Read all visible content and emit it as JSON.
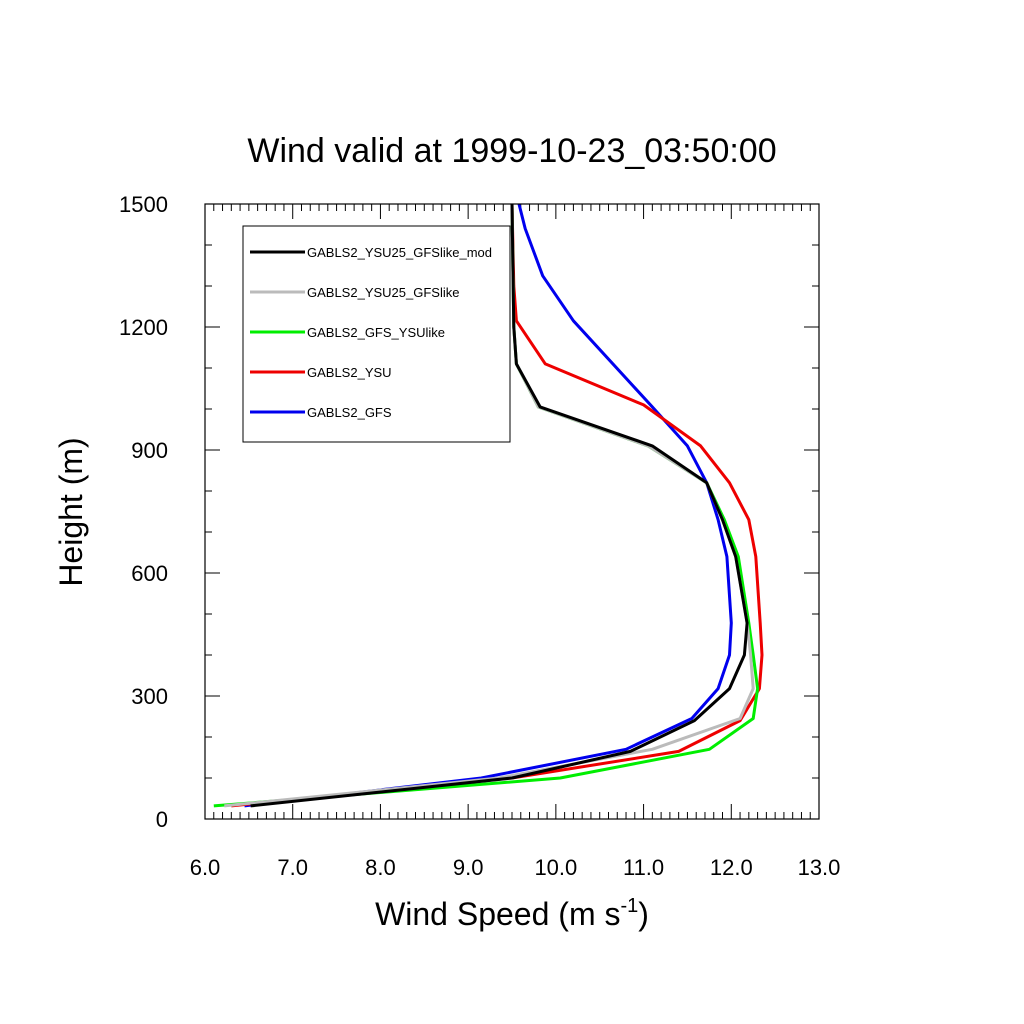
{
  "chart_data": {
    "type": "line",
    "title": "Wind valid at 1999-10-23_03:50:00",
    "xlabel": "Wind Speed (m s",
    "xlabel_sup": "-1",
    "xlabel_tail": ")",
    "ylabel": "Height (m)",
    "xlim": [
      6.0,
      13.0
    ],
    "ylim": [
      0,
      1500
    ],
    "x_ticks": [
      "6.0",
      "7.0",
      "8.0",
      "9.0",
      "10.0",
      "11.0",
      "12.0",
      "13.0"
    ],
    "y_ticks": [
      "0",
      "300",
      "600",
      "900",
      "1200",
      "1500"
    ],
    "grid": false,
    "legend_position": "top-left",
    "series": [
      {
        "name": "GABLS2_YSU25_GFSlike_mod",
        "color": "#000000",
        "points": [
          [
            6.52,
            32
          ],
          [
            9.5,
            100
          ],
          [
            10.85,
            165
          ],
          [
            11.58,
            240
          ],
          [
            11.98,
            318
          ],
          [
            12.15,
            400
          ],
          [
            12.18,
            478
          ],
          [
            12.05,
            640
          ],
          [
            11.9,
            730
          ],
          [
            11.72,
            820
          ],
          [
            11.1,
            910
          ],
          [
            9.82,
            1005
          ],
          [
            9.55,
            1110
          ],
          [
            9.52,
            1200
          ],
          [
            9.5,
            1500
          ]
        ]
      },
      {
        "name": "GABLS2_YSU25_GFSlike",
        "color": "#bbbbbb",
        "points": [
          [
            6.22,
            32
          ],
          [
            9.35,
            100
          ],
          [
            11.1,
            170
          ],
          [
            12.1,
            245
          ],
          [
            12.25,
            318
          ],
          [
            12.22,
            400
          ],
          [
            12.18,
            478
          ],
          [
            12.05,
            640
          ],
          [
            11.9,
            730
          ],
          [
            11.72,
            820
          ],
          [
            11.05,
            910
          ],
          [
            9.8,
            1005
          ],
          [
            9.55,
            1110
          ],
          [
            9.52,
            1200
          ],
          [
            9.5,
            1500
          ]
        ]
      },
      {
        "name": "GABLS2_GFS_YSUlike",
        "color": "#00ee00",
        "points": [
          [
            6.1,
            32
          ],
          [
            10.05,
            100
          ],
          [
            11.75,
            170
          ],
          [
            12.25,
            245
          ],
          [
            12.3,
            318
          ],
          [
            12.25,
            400
          ],
          [
            12.2,
            478
          ],
          [
            12.08,
            640
          ],
          [
            11.92,
            730
          ],
          [
            11.72,
            820
          ],
          [
            11.05,
            910
          ],
          [
            9.8,
            1005
          ],
          [
            9.55,
            1110
          ],
          [
            9.52,
            1200
          ],
          [
            9.5,
            1500
          ]
        ]
      },
      {
        "name": "GABLS2_YSU",
        "color": "#ee0000",
        "points": [
          [
            6.3,
            32
          ],
          [
            9.5,
            100
          ],
          [
            11.4,
            165
          ],
          [
            12.1,
            240
          ],
          [
            12.32,
            318
          ],
          [
            12.35,
            400
          ],
          [
            12.33,
            478
          ],
          [
            12.28,
            640
          ],
          [
            12.2,
            730
          ],
          [
            11.98,
            820
          ],
          [
            11.65,
            910
          ],
          [
            11.0,
            1010
          ],
          [
            9.88,
            1110
          ],
          [
            9.55,
            1215
          ],
          [
            9.52,
            1300
          ],
          [
            9.5,
            1500
          ]
        ]
      },
      {
        "name": "GABLS2_GFS",
        "color": "#0000ee",
        "points": [
          [
            6.45,
            32
          ],
          [
            9.15,
            100
          ],
          [
            10.8,
            170
          ],
          [
            11.55,
            245
          ],
          [
            11.85,
            318
          ],
          [
            11.98,
            400
          ],
          [
            12.0,
            478
          ],
          [
            11.95,
            640
          ],
          [
            11.85,
            730
          ],
          [
            11.72,
            820
          ],
          [
            11.5,
            910
          ],
          [
            11.1,
            1005
          ],
          [
            10.2,
            1215
          ],
          [
            9.85,
            1325
          ],
          [
            9.65,
            1440
          ],
          [
            9.58,
            1500
          ]
        ]
      }
    ]
  }
}
